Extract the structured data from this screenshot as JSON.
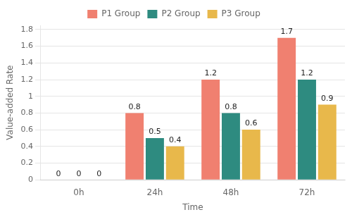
{
  "chart_data": {
    "type": "bar",
    "categories": [
      "0h",
      "24h",
      "48h",
      "72h"
    ],
    "series": [
      {
        "name": "P1 Group",
        "color": "#F08070",
        "values": [
          0,
          0.8,
          1.2,
          1.7
        ]
      },
      {
        "name": "P2 Group",
        "color": "#2E8B80",
        "values": [
          0,
          0.5,
          0.8,
          1.2
        ]
      },
      {
        "name": "P3 Group",
        "color": "#E8B84B",
        "values": [
          0,
          0.4,
          0.6,
          0.9
        ]
      }
    ],
    "xlabel": "Time",
    "ylabel": "Value-added Rate",
    "ylim": [
      0,
      1.85
    ],
    "yticks": [
      0,
      0.2,
      0.4,
      0.6,
      0.8,
      1,
      1.2,
      1.4,
      1.6,
      1.8
    ],
    "grid": true,
    "legend": "top",
    "data_labels": true
  }
}
